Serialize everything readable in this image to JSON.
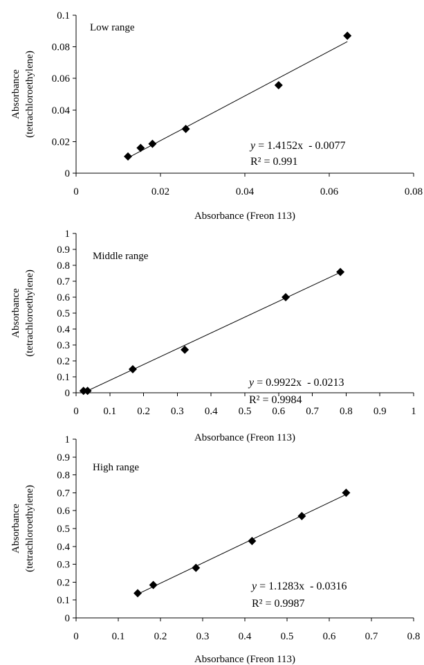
{
  "chart_data": [
    {
      "type": "scatter",
      "title": "Low range",
      "xlabel": "Absorbance (Freon 113)",
      "ylabel_line1": "Absorbance",
      "ylabel_line2": "(tetrachloroethylene)",
      "xlim": [
        0,
        0.08
      ],
      "ylim": [
        0,
        0.1
      ],
      "xticks": [
        "0",
        "0.02",
        "0.04",
        "0.06",
        "0.08"
      ],
      "yticks": [
        "0",
        "0.02",
        "0.04",
        "0.06",
        "0.08",
        "0.1"
      ],
      "x": [
        0.0123,
        0.0153,
        0.0181,
        0.026,
        0.048,
        0.0643
      ],
      "y": [
        0.0106,
        0.016,
        0.0186,
        0.028,
        0.0557,
        0.087
      ],
      "trendline": {
        "slope": 1.4152,
        "intercept": -0.0077,
        "x_range": [
          0.012,
          0.0643
        ]
      },
      "equation_y": "y",
      "equation_rest": " = 1.4152x  - 0.0077",
      "r2": "R² = 0.991",
      "grid": false,
      "marker": "diamond"
    },
    {
      "type": "scatter",
      "title": "Middle range",
      "xlabel": "Absorbance (Freon 113)",
      "ylabel_line1": "Absorbance",
      "ylabel_line2": "(tetrachloroethylene)",
      "xlim": [
        0,
        1
      ],
      "ylim": [
        0,
        1
      ],
      "xticks": [
        "0",
        "0.1",
        "0.2",
        "0.3",
        "0.4",
        "0.5",
        "0.6",
        "0.7",
        "0.8",
        "0.9",
        "1"
      ],
      "yticks": [
        "0",
        "0.1",
        "0.2",
        "0.3",
        "0.4",
        "0.5",
        "0.6",
        "0.7",
        "0.8",
        "0.9",
        "1"
      ],
      "x": [
        0.022,
        0.034,
        0.168,
        0.322,
        0.621,
        0.783
      ],
      "y": [
        0.012,
        0.012,
        0.148,
        0.27,
        0.6,
        0.758
      ],
      "trendline": {
        "slope": 0.9922,
        "intercept": -0.0213,
        "x_range": [
          0.034,
          0.783
        ]
      },
      "equation_y": "y",
      "equation_rest": " = 0.9922x  - 0.0213",
      "r2": "R² = 0.9984",
      "grid": false,
      "marker": "diamond"
    },
    {
      "type": "scatter",
      "title": "High range",
      "xlabel": "Absorbance (Freon 113)",
      "ylabel_line1": "Absorbance",
      "ylabel_line2": "(tetrachloroethylene)",
      "xlim": [
        0,
        0.8
      ],
      "ylim": [
        0,
        1
      ],
      "xticks": [
        "0",
        "0.1",
        "0.2",
        "0.3",
        "0.4",
        "0.5",
        "0.6",
        "0.7",
        "0.8"
      ],
      "yticks": [
        "0",
        "0.1",
        "0.2",
        "0.3",
        "0.4",
        "0.5",
        "0.6",
        "0.7",
        "0.8",
        "0.9",
        "1"
      ],
      "x": [
        0.146,
        0.183,
        0.284,
        0.417,
        0.535,
        0.64
      ],
      "y": [
        0.138,
        0.184,
        0.28,
        0.43,
        0.57,
        0.7
      ],
      "trendline": {
        "slope": 1.1283,
        "intercept": -0.0316,
        "x_range": [
          0.146,
          0.64
        ]
      },
      "equation_y": "y",
      "equation_rest": " = 1.1283x  - 0.0316",
      "r2": "R² = 0.9987",
      "grid": false,
      "marker": "diamond"
    }
  ]
}
